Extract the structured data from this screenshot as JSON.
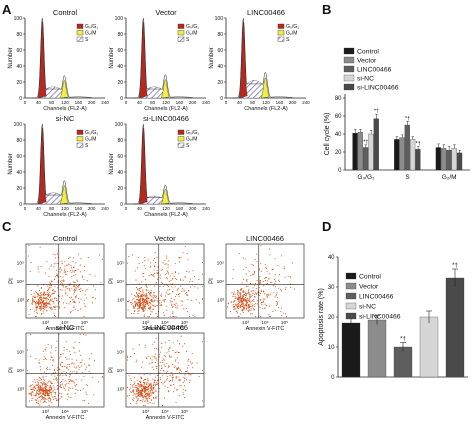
{
  "panel_letters": [
    "A",
    "B",
    "C",
    "D"
  ],
  "cycle_titles": [
    "Control",
    "Vector",
    "LINC00466",
    "si-NC",
    "si-LINC00466"
  ],
  "flow_titles": [
    "Control",
    "Vector",
    "LINC00466",
    "si-NC",
    "si-LINC00466"
  ],
  "hist_ylabel": "Number",
  "hist_xlabel": "Channels (FL2-A)",
  "hist_yticks": [
    "0",
    "20",
    "40",
    "60",
    "80",
    "100"
  ],
  "hist_xticks": [
    "0",
    "40",
    "80",
    "120",
    "160",
    "200",
    "240"
  ],
  "hist_legend": [
    "G₀/G₁",
    "G₂/M",
    "S"
  ],
  "flow_ylabel": "PI",
  "flow_xlabel": "Annexin V-FITC",
  "flow_ticks": [
    "10³",
    "10⁴",
    "10⁵"
  ],
  "colors": {
    "g0g1": "#b8281e",
    "g2m": "#f4ef3c",
    "s_hatch": "#8f8fc8",
    "dots": "#d24a12",
    "control": "#1a1a1a",
    "vector": "#8c8c8c",
    "linc": "#5e5e5e",
    "sinc": "#d6d6d6",
    "silinc": "#4a4a4a"
  },
  "chart_data": [
    {
      "type": "bar",
      "panel": "B",
      "ylabel": "Cell cycle (%)",
      "ylim": [
        0,
        80
      ],
      "yticks": [
        "0",
        "20",
        "40",
        "60",
        "80"
      ],
      "categories": [
        "G₀/G₁",
        "S",
        "G₂/M"
      ],
      "series": [
        {
          "name": "Control",
          "values": [
            41,
            34,
            25
          ],
          "errors": [
            4,
            3,
            4
          ]
        },
        {
          "name": "Vector",
          "values": [
            42,
            36,
            24
          ],
          "errors": [
            3,
            3,
            4
          ]
        },
        {
          "name": "LINC00466",
          "values": [
            25,
            50,
            22
          ],
          "errors": [
            3,
            4,
            4
          ]
        },
        {
          "name": "si-NC",
          "values": [
            40,
            34,
            24
          ],
          "errors": [
            4,
            3,
            4
          ]
        },
        {
          "name": "si-LINC00466",
          "values": [
            57,
            23,
            19
          ],
          "errors": [
            5,
            3,
            3
          ]
        }
      ],
      "annotations": [
        {
          "category": "G₀/G₁",
          "series": "LINC00466",
          "text": "*†"
        },
        {
          "category": "G₀/G₁",
          "series": "si-LINC00466",
          "text": "*†"
        },
        {
          "category": "S",
          "series": "LINC00466",
          "text": "*†"
        },
        {
          "category": "S",
          "series": "si-LINC00466",
          "text": "*†"
        }
      ]
    },
    {
      "type": "bar",
      "panel": "D",
      "ylabel": "Apoptosis rate (%)",
      "ylim": [
        0,
        40
      ],
      "yticks": [
        "0",
        "10",
        "20",
        "30",
        "40"
      ],
      "categories": [
        "Control",
        "Vector",
        "LINC00466",
        "si-NC",
        "si-LINC00466"
      ],
      "values": [
        18,
        19,
        10,
        20,
        33
      ],
      "errors": [
        1.5,
        1.5,
        1.5,
        2,
        3
      ],
      "annotations": [
        {
          "category": "LINC00466",
          "text": "*†"
        },
        {
          "category": "si-LINC00466",
          "text": "*†"
        }
      ]
    }
  ]
}
